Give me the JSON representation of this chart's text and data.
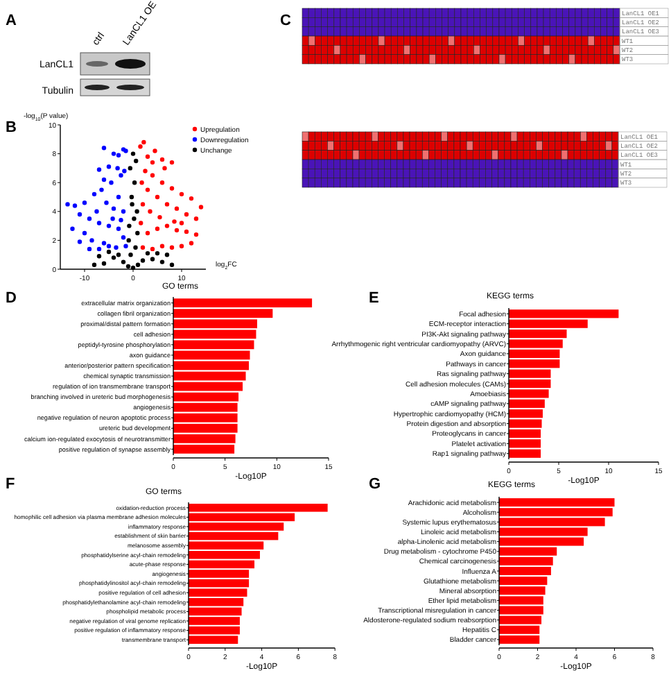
{
  "chart_data": [
    {
      "type": "other",
      "annotations": [
        "A"
      ],
      "categories": [
        "ctrl",
        "LanCL1 OE"
      ],
      "y_categories": [
        "LanCL1",
        "Tubulin"
      ]
    },
    {
      "type": "scatter",
      "annotations": [
        "B"
      ],
      "ylabel": "-log$_{10}$(P value)",
      "xlabel": "log$_{2}$FC",
      "xlim": [
        -15,
        15
      ],
      "xticks": [
        -10,
        0,
        10
      ],
      "ylim": [
        0,
        10
      ],
      "yticks": [
        0,
        2,
        4,
        6,
        8,
        10
      ],
      "legend": "top right",
      "marker": "circle",
      "series": [
        {
          "name": "Upregulation",
          "color": "#ff0000",
          "x": [
            1.5,
            2.2,
            3,
            4.5,
            6,
            8,
            2.5,
            4,
            6,
            8,
            10,
            12,
            14,
            13,
            11,
            9,
            7,
            5,
            3,
            2,
            1.6,
            3,
            5,
            7,
            9,
            11,
            13,
            12,
            10,
            8,
            6,
            4,
            2,
            1.8,
            3.5,
            5.5,
            8.5,
            6.5,
            4,
            10
          ],
          "values": [
            8.5,
            8.8,
            7.8,
            8.2,
            7.6,
            7.4,
            6.8,
            6.5,
            6,
            5.6,
            5.2,
            4.9,
            4.3,
            3.5,
            3.8,
            4.2,
            4.5,
            5,
            5.5,
            4.5,
            3.2,
            2.5,
            2.8,
            3,
            2.7,
            2.6,
            2.4,
            1.8,
            1.6,
            1.5,
            1.6,
            1.4,
            1.5,
            6,
            4,
            3.6,
            3.3,
            7,
            7.4,
            3.2
          ]
        },
        {
          "name": "Downregulation",
          "color": "#0000ff",
          "x": [
            -1.5,
            -2,
            -3,
            -4,
            -5,
            -6,
            -7,
            -2.5,
            -4.5,
            -6.5,
            -8,
            -10,
            -12,
            -13.5,
            -11,
            -9,
            -7,
            -5,
            -3,
            -2,
            -1.5,
            -3.5,
            -6,
            -8.5,
            -10,
            -12.5,
            -11,
            -9,
            -7,
            -5,
            -2,
            -3,
            -4,
            -5.5,
            -7.5,
            -1.8,
            -3.2,
            -6,
            -4.2,
            -2.5
          ],
          "values": [
            8.2,
            8.3,
            7.9,
            8,
            7.1,
            8.4,
            6.9,
            6.5,
            6,
            5.5,
            5.2,
            4.6,
            4.4,
            4.5,
            3.8,
            3.5,
            3.2,
            3,
            2.8,
            2.2,
            1.6,
            1.5,
            1.8,
            2,
            2.5,
            2.8,
            1.9,
            1.4,
            1.4,
            1.6,
            4,
            5,
            4.2,
            4.6,
            4,
            6.8,
            7,
            6.2,
            3.5,
            3.4
          ]
        },
        {
          "name": "Unchange",
          "color": "#000000",
          "x": [
            0,
            -0.5,
            0.5,
            -0.8,
            0.8,
            -0.3,
            0.3,
            -0.6,
            0.6,
            0,
            -0.9,
            0.9,
            -2,
            2,
            -4,
            4,
            -6,
            6,
            -8,
            8,
            -3,
            3,
            -5,
            5,
            -1,
            1,
            -0.2,
            0.2,
            -7,
            7
          ],
          "values": [
            0.1,
            1,
            1.5,
            3,
            4,
            5,
            6,
            7,
            7.5,
            8,
            2,
            2.5,
            0.5,
            0.6,
            0.8,
            0.7,
            0.4,
            0.5,
            0.3,
            0.3,
            1,
            1.1,
            1.2,
            1.1,
            0.2,
            0.3,
            4.5,
            3.5,
            0.9,
            1
          ]
        }
      ]
    },
    {
      "type": "other",
      "annotations": [
        "C"
      ],
      "y2_categories": [
        "LanCL1 OE1",
        "LanCL1 OE2",
        "LanCL1 OE3",
        "WT1",
        "WT2",
        "WT3"
      ]
    },
    {
      "type": "other",
      "y2_categories": [
        "LanCL1 OE1",
        "LanCL1 OE2",
        "LanCL1 OE3",
        "WT1",
        "WT2",
        "WT3"
      ]
    },
    {
      "type": "bar",
      "orientation": "horizontal",
      "annotations": [
        "D"
      ],
      "title": "GO terms",
      "xlabel": "-Log10P",
      "color": "#ff0000",
      "xlim": [
        0,
        15
      ],
      "xticks": [
        0,
        5,
        10,
        15
      ],
      "categories": [
        "extracellular matrix organization",
        "collagen fibril organization",
        "proximal/distal pattern formation",
        "cell adhesion",
        "peptidyl-tyrosine phosphorylation",
        "axon guidance",
        "anterior/posterior pattern specification",
        "chemical synaptic transmission",
        "regulation of ion transmembrane transport",
        "branching involved in ureteric bud morphogenesis",
        "angiogenesis",
        "negative regulation of neuron apoptotic process",
        "ureteric bud development",
        "calcium ion-regulated exocytosis of neurotransmitter",
        "positive regulation of synapse assembly"
      ],
      "values": [
        13.4,
        9.6,
        8.1,
        8.0,
        7.8,
        7.4,
        7.3,
        7.0,
        6.7,
        6.3,
        6.2,
        6.2,
        6.2,
        6.0,
        5.9
      ]
    },
    {
      "type": "bar",
      "orientation": "horizontal",
      "annotations": [
        "E"
      ],
      "title": "KEGG terms",
      "xlabel": "-Log10P",
      "color": "#ff0000",
      "xlim": [
        0,
        15
      ],
      "xticks": [
        0,
        5,
        10,
        15
      ],
      "categories": [
        "Focal adhesion",
        "ECM-receptor interaction",
        "PI3K-Akt signaling pathway",
        "Arrhythmogenic right ventricular cardiomyopathy (ARVC)",
        "Axon guidance",
        "Pathways in cancer",
        "Ras signaling pathway",
        "Cell adhesion molecules (CAMs)",
        "Amoebiasis",
        "cAMP signaling pathway",
        "Hypertrophic cardiomyopathy (HCM)",
        "Protein digestion and absorption",
        "Proteoglycans in cancer",
        "Platelet activation",
        "Rap1 signaling pathway"
      ],
      "values": [
        11.0,
        7.9,
        5.8,
        5.4,
        5.1,
        5.1,
        4.2,
        4.2,
        4.0,
        3.6,
        3.4,
        3.3,
        3.2,
        3.2,
        3.2
      ]
    },
    {
      "type": "bar",
      "orientation": "horizontal",
      "annotations": [
        "F"
      ],
      "title": "GO terms",
      "xlabel": "-Log10P",
      "color": "#ff0000",
      "xlim": [
        0,
        8
      ],
      "xticks": [
        0,
        2,
        4,
        6,
        8
      ],
      "categories": [
        "oxidation-reduction process",
        "homophilic cell adhesion via plasma membrane adhesion molecules",
        "inflammatory response",
        "establishment of skin barrier",
        "melanosome assembly",
        "phosphatidylserine acyl-chain remodeling",
        "acute-phase response",
        "angiogenesis",
        "phosphatidylinositol acyl-chain remodeling",
        "positive regulation of cell adhesion",
        "phosphatidylethanolamine acyl-chain remodeling",
        "phospholipid metabolic process",
        "negative regulation of viral genome replication",
        "positive regulation of inflammatory response",
        "transmembrane transport"
      ],
      "values": [
        7.6,
        5.8,
        5.2,
        4.9,
        4.1,
        3.9,
        3.6,
        3.3,
        3.3,
        3.2,
        3.0,
        2.9,
        2.8,
        2.8,
        2.7
      ]
    },
    {
      "type": "bar",
      "orientation": "horizontal",
      "annotations": [
        "G"
      ],
      "title": "KEGG terms",
      "xlabel": "-Log10P",
      "color": "#ff0000",
      "xlim": [
        0,
        8
      ],
      "xticks": [
        0,
        2,
        4,
        6,
        8
      ],
      "categories": [
        "Arachidonic acid metabolism",
        "Alcoholism",
        "Systemic lupus erythematosus",
        "Linoleic acid metabolism",
        "alpha-Linolenic acid metabolism",
        "Drug metabolism - cytochrome P450",
        "Chemical carcinogenesis",
        "Influenza A",
        "Glutathione metabolism",
        "Mineral absorption",
        "Ether lipid metabolism",
        "Transcriptional misregulation in cancer",
        "Aldosterone-regulated sodium reabsorption",
        "Hepatitis C",
        "Bladder cancer"
      ],
      "values": [
        6.0,
        5.9,
        5.5,
        4.6,
        4.4,
        3.0,
        2.8,
        2.7,
        2.5,
        2.4,
        2.3,
        2.3,
        2.2,
        2.1,
        2.1
      ]
    }
  ]
}
